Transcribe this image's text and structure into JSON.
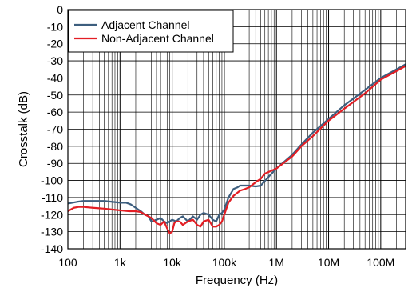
{
  "chart_data": {
    "type": "line",
    "xlabel": "Frequency (Hz)",
    "ylabel": "Crosstalk (dB)",
    "x_scale": "log",
    "xlim": [
      100,
      300000000
    ],
    "ylim": [
      -140,
      0
    ],
    "grid": true,
    "legend_position": "top-left",
    "x_ticks": [
      {
        "value": 100,
        "label": "100"
      },
      {
        "value": 1000,
        "label": "1k"
      },
      {
        "value": 10000,
        "label": "10k"
      },
      {
        "value": 100000,
        "label": "100k"
      },
      {
        "value": 1000000,
        "label": "1M"
      },
      {
        "value": 10000000,
        "label": "10M"
      },
      {
        "value": 100000000,
        "label": "100M"
      }
    ],
    "y_ticks": [
      {
        "value": 0,
        "label": "0"
      },
      {
        "value": -10,
        "label": "-10"
      },
      {
        "value": -20,
        "label": "-20"
      },
      {
        "value": -30,
        "label": "-30"
      },
      {
        "value": -40,
        "label": "-40"
      },
      {
        "value": -50,
        "label": "-50"
      },
      {
        "value": -60,
        "label": "-60"
      },
      {
        "value": -70,
        "label": "-70"
      },
      {
        "value": -80,
        "label": "-80"
      },
      {
        "value": -90,
        "label": "-90"
      },
      {
        "value": -100,
        "label": "-100"
      },
      {
        "value": -110,
        "label": "-110"
      },
      {
        "value": -120,
        "label": "-120"
      },
      {
        "value": -130,
        "label": "-130"
      },
      {
        "value": -140,
        "label": "-140"
      }
    ],
    "series": [
      {
        "name": "Adjacent Channel",
        "color": "#3d5e7e",
        "x": [
          100,
          150,
          200,
          300,
          500,
          700,
          1000,
          1300,
          1600,
          2000,
          2500,
          3000,
          3500,
          4000,
          5000,
          6000,
          7000,
          8000,
          10000,
          12000,
          14000,
          16000,
          20000,
          25000,
          30000,
          35000,
          40000,
          50000,
          60000,
          70000,
          80000,
          90000,
          100000,
          120000,
          150000,
          180000,
          200000,
          250000,
          300000,
          400000,
          500000,
          700000,
          1000000,
          2000000,
          3000000,
          5000000,
          10000000,
          20000000,
          50000000,
          100000000,
          200000000,
          300000000
        ],
        "y": [
          -113.5,
          -112.5,
          -112,
          -112,
          -112,
          -112.5,
          -113,
          -113,
          -114,
          -116,
          -118,
          -120,
          -121,
          -124,
          -123,
          -122,
          -124,
          -125,
          -123,
          -124,
          -122,
          -121,
          -124,
          -121,
          -123,
          -120,
          -119,
          -120,
          -123,
          -124,
          -120,
          -119,
          -117,
          -110,
          -105,
          -104,
          -103,
          -103,
          -103,
          -103.5,
          -103,
          -98,
          -93,
          -85,
          -79,
          -72,
          -64,
          -56,
          -47,
          -40,
          -35,
          -32
        ]
      },
      {
        "name": "Non-Adjacent Channel",
        "color": "#e31e24",
        "x": [
          100,
          130,
          160,
          200,
          300,
          500,
          700,
          1000,
          1500,
          2000,
          2500,
          3000,
          3500,
          4000,
          5000,
          6000,
          7000,
          8000,
          9000,
          10000,
          11000,
          12000,
          14000,
          16000,
          20000,
          25000,
          30000,
          35000,
          40000,
          50000,
          60000,
          70000,
          80000,
          90000,
          100000,
          120000,
          150000,
          200000,
          250000,
          300000,
          400000,
          500000,
          600000,
          1000000,
          2000000,
          3000000,
          5000000,
          10000000,
          20000000,
          50000000,
          100000000,
          200000000,
          300000000
        ],
        "y": [
          -118,
          -116,
          -115.5,
          -115.5,
          -116,
          -116.5,
          -117,
          -117.5,
          -118,
          -118,
          -118.5,
          -120,
          -121,
          -122,
          -125,
          -126,
          -124,
          -128,
          -131,
          -130,
          -125,
          -124,
          -124,
          -126,
          -124,
          -123,
          -126,
          -127,
          -124,
          -123,
          -127,
          -127,
          -126,
          -124,
          -120,
          -113,
          -109,
          -106,
          -105,
          -104,
          -101,
          -99,
          -96,
          -93,
          -86,
          -80,
          -74,
          -65,
          -58,
          -49,
          -41,
          -36,
          -33
        ]
      }
    ]
  }
}
